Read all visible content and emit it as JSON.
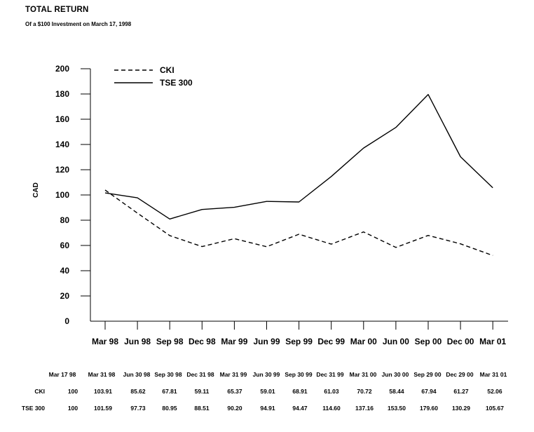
{
  "header": {
    "title": "TOTAL RETURN",
    "subtitle": "Of a $100 Investment on March 17, 1998"
  },
  "chart_data": {
    "type": "line",
    "title": "TOTAL RETURN",
    "subtitle": "Of a $100 Investment on March 17, 1998",
    "xlabel": "",
    "ylabel": "CAD",
    "ylim": [
      0,
      200
    ],
    "yticks": [
      0,
      20,
      40,
      60,
      80,
      100,
      120,
      140,
      160,
      180,
      200
    ],
    "categories": [
      "Mar 98",
      "Jun 98",
      "Sep 98",
      "Dec 98",
      "Mar 99",
      "Jun 99",
      "Sep 99",
      "Dec 99",
      "Mar 00",
      "Jun 00",
      "Sep 00",
      "Dec 00",
      "Mar 01"
    ],
    "grid": false,
    "legend_position": "top-left",
    "series": [
      {
        "name": "CKI",
        "style": "dashed",
        "values": [
          103.91,
          85.62,
          67.81,
          59.11,
          65.37,
          59.01,
          68.91,
          61.03,
          70.72,
          58.44,
          67.94,
          61.27,
          52.06
        ]
      },
      {
        "name": "TSE 300",
        "style": "solid",
        "values": [
          101.59,
          97.73,
          80.95,
          88.51,
          90.2,
          94.91,
          94.47,
          114.6,
          137.16,
          153.5,
          179.6,
          130.29,
          105.67
        ]
      }
    ]
  },
  "table": {
    "columns": [
      "Mar 17 98",
      "Mar 31 98",
      "Jun 30 98",
      "Sep 30 98",
      "Dec 31 98",
      "Mar 31 99",
      "Jun 30 99",
      "Sep 30 99",
      "Dec 31 99",
      "Mar 31 00",
      "Jun 30 00",
      "Sep 29 00",
      "Dec 29 00",
      "Mar 31 01"
    ],
    "rows": [
      {
        "label": "CKI",
        "values": [
          "100",
          "103.91",
          "85.62",
          "67.81",
          "59.11",
          "65.37",
          "59.01",
          "68.91",
          "61.03",
          "70.72",
          "58.44",
          "67.94",
          "61.27",
          "52.06"
        ]
      },
      {
        "label": "TSE 300",
        "values": [
          "100",
          "101.59",
          "97.73",
          "80.95",
          "88.51",
          "90.20",
          "94.91",
          "94.47",
          "114.60",
          "137.16",
          "153.50",
          "179.60",
          "130.29",
          "105.67"
        ]
      }
    ]
  },
  "colors": {
    "ink": "#000000",
    "background": "#ffffff"
  }
}
